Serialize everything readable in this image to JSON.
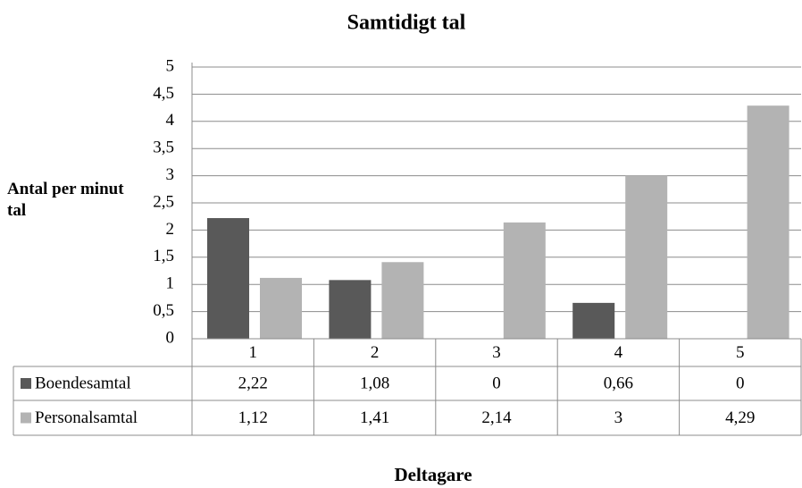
{
  "chart_data": {
    "type": "bar",
    "title": "Samtidigt tal",
    "y_label": "Antal per minut tal",
    "x_label": "Deltagare",
    "categories": [
      "1",
      "2",
      "3",
      "4",
      "5"
    ],
    "series": [
      {
        "name": "Boendesamtal",
        "color": "#595959",
        "values": [
          2.22,
          1.08,
          0,
          0.66,
          0
        ],
        "value_labels": [
          "2,22",
          "1,08",
          "0",
          "0,66",
          "0"
        ]
      },
      {
        "name": "Personalsamtal",
        "color": "#b3b3b3",
        "values": [
          1.12,
          1.41,
          2.14,
          3,
          4.29
        ],
        "value_labels": [
          "1,12",
          "1,41",
          "2,14",
          "3",
          "4,29"
        ]
      }
    ],
    "ylim": [
      0,
      5
    ],
    "yticks": [
      0,
      {
        "value": 0.5,
        "label": "0,5"
      },
      1,
      {
        "value": 1.5,
        "label": "1,5"
      },
      2,
      {
        "value": 2.5,
        "label": "2,5"
      },
      3,
      {
        "value": 3.5,
        "label": "3,5"
      },
      4,
      {
        "value": 4.5,
        "label": "4,5"
      },
      5
    ],
    "grid": true,
    "data_table": true
  }
}
